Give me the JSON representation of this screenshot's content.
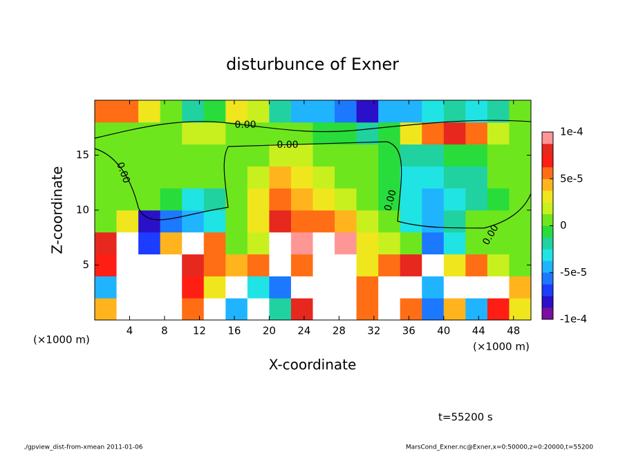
{
  "chart_data": {
    "type": "heatmap",
    "title": "disturbunce of Exner",
    "x_label": "X-coordinate",
    "y_label": "Z-coordinate",
    "x_unit_left": "(×1000 m)",
    "x_unit_right": "(×1000 m)",
    "time_label": "t=55200 s",
    "footer_left": "./gpview_dist-from-xmean  2011-01-06",
    "footer_right": "MarsCond_Exner.nc@Exner,x=0:50000,z=0:20000,t=55200",
    "contour_labels": [
      "0.00",
      "0.00",
      "0.00",
      "0.00",
      "0.00"
    ],
    "xlim": [
      0,
      50
    ],
    "ylim": [
      0,
      20
    ],
    "xticks": [
      4,
      8,
      12,
      16,
      20,
      24,
      28,
      32,
      36,
      40,
      44,
      48
    ],
    "yticks": [
      5,
      10,
      15
    ],
    "x": [
      1.25,
      3.75,
      6.25,
      8.75,
      11.25,
      13.75,
      16.25,
      18.75,
      21.25,
      23.75,
      26.25,
      28.75,
      31.25,
      33.75,
      36.25,
      38.75,
      41.25,
      43.75,
      46.25,
      48.75
    ],
    "y": [
      1,
      3,
      5,
      7,
      9,
      11,
      13,
      15,
      17,
      19
    ],
    "values": [
      [
        4e-05,
        0.00012,
        0.00012,
        0.00012,
        6e-05,
        0.00012,
        -4e-05,
        0.00012,
        -2e-05,
        8e-05,
        0.00012,
        0.00012,
        6e-05,
        0.00012,
        5e-05,
        -6e-05,
        4e-05,
        -5e-05,
        7e-05,
        3e-05
      ],
      [
        -5e-05,
        0.00012,
        0.00012,
        0.00012,
        7e-05,
        3e-05,
        0.00012,
        -3e-05,
        -6e-05,
        0.00012,
        0.00012,
        0.00012,
        6e-05,
        0.00012,
        0.00012,
        -4e-05,
        0.00012,
        0.00012,
        0.00012,
        4e-05
      ],
      [
        7e-05,
        0.00012,
        0.00012,
        0.00012,
        8e-05,
        6e-05,
        4e-05,
        5e-05,
        0.00012,
        5e-05,
        0.00012,
        0.00012,
        3e-05,
        5e-05,
        8e-05,
        0.00012,
        3e-05,
        6e-05,
        2e-05,
        1e-05
      ],
      [
        8e-05,
        0.00012,
        -7e-05,
        4e-05,
        0.00012,
        6e-05,
        1e-05,
        2e-05,
        0.00012,
        9e-05,
        0.00012,
        9e-05,
        3e-05,
        2e-05,
        0,
        -6e-05,
        -3e-05,
        1e-05,
        0,
        1e-05
      ],
      [
        1e-05,
        3e-05,
        -8e-05,
        -6e-05,
        -5e-05,
        -3e-05,
        0,
        3e-05,
        8e-05,
        6e-05,
        5e-05,
        4e-05,
        2e-05,
        0,
        -3e-05,
        -4e-05,
        -2e-05,
        0,
        1e-05,
        0
      ],
      [
        0,
        1e-05,
        0,
        -1e-05,
        -3e-05,
        -2e-05,
        0,
        3e-05,
        5e-05,
        4e-05,
        3e-05,
        2e-05,
        1e-05,
        -1e-05,
        -3e-05,
        -4e-05,
        -3e-05,
        -2e-05,
        -1e-05,
        0
      ],
      [
        0,
        1e-05,
        1e-05,
        0,
        0,
        0,
        0,
        2e-05,
        4e-05,
        3e-05,
        2e-05,
        1e-05,
        0,
        -1e-05,
        -3e-05,
        -3e-05,
        -2e-05,
        -2e-05,
        0,
        0
      ],
      [
        1e-05,
        1e-05,
        0,
        0,
        0,
        1e-05,
        0,
        1e-05,
        2e-05,
        2e-05,
        1e-05,
        0,
        0,
        -1e-05,
        -2e-05,
        -2e-05,
        -1e-05,
        -1e-05,
        0,
        1e-05
      ],
      [
        0,
        0,
        1e-05,
        1e-05,
        2e-05,
        2e-05,
        1e-05,
        0,
        0,
        0,
        -1e-05,
        -1e-05,
        -2e-05,
        -1e-05,
        3e-05,
        5e-05,
        8e-05,
        5e-05,
        2e-05,
        0
      ],
      [
        5e-05,
        6e-05,
        3e-05,
        0,
        -2e-05,
        -1e-05,
        3e-05,
        2e-05,
        -2e-05,
        -4e-05,
        -5e-05,
        -6e-05,
        -8e-05,
        -5e-05,
        -4e-05,
        -3e-05,
        -2e-05,
        -3e-05,
        -2e-05,
        0
      ]
    ],
    "clim": [
      -0.0001,
      0.0001
    ],
    "colorbar_ticks": [
      {
        "value": 0.0001,
        "label": "1e-4"
      },
      {
        "value": 5e-05,
        "label": "5e-5"
      },
      0,
      {
        "value": -5e-05,
        "label": "-5e-5"
      },
      {
        "value": -0.0001,
        "label": "-1e-4"
      }
    ],
    "colorscale": [
      "#7b0fa0",
      "#2a10c8",
      "#1c3cff",
      "#1c78ff",
      "#20b4ff",
      "#20e4e4",
      "#20d2a0",
      "#28dc3c",
      "#6ee61e",
      "#c8f01e",
      "#f0e61e",
      "#ffb41e",
      "#ff6e14",
      "#ff1e14",
      "#e6281e",
      "#ff9696"
    ],
    "over_color": "#ffffff"
  }
}
